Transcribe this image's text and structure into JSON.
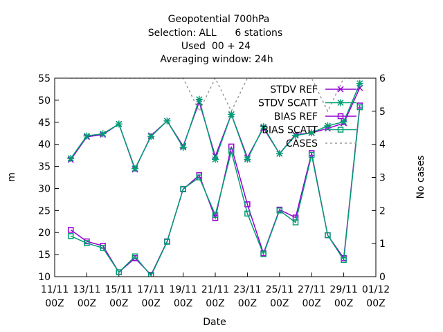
{
  "chart_data": {
    "type": "line",
    "title_lines": [
      "Geopotential 700hPa",
      "Selection: ALL      6 stations",
      "Used  00 + 24",
      "Averaging window: 24h"
    ],
    "xlabel": "Date",
    "ylabel": "m",
    "y2label": "No cases",
    "ylim": [
      10,
      55
    ],
    "y2lim": [
      0,
      6
    ],
    "yticks": [
      "10",
      "15",
      "20",
      "25",
      "30",
      "35",
      "40",
      "45",
      "50",
      "55"
    ],
    "y2ticks": [
      "0",
      "1",
      "2",
      "3",
      "4",
      "5",
      "6"
    ],
    "xlim": [
      0,
      20
    ],
    "xticks": [
      {
        "x": 0,
        "l1": "11/11",
        "l2": "00Z"
      },
      {
        "x": 2,
        "l1": "13/11",
        "l2": "00Z"
      },
      {
        "x": 4,
        "l1": "15/11",
        "l2": "00Z"
      },
      {
        "x": 6,
        "l1": "17/11",
        "l2": "00Z"
      },
      {
        "x": 8,
        "l1": "19/11",
        "l2": "00Z"
      },
      {
        "x": 10,
        "l1": "21/11",
        "l2": "00Z"
      },
      {
        "x": 12,
        "l1": "23/11",
        "l2": "00Z"
      },
      {
        "x": 14,
        "l1": "25/11",
        "l2": "00Z"
      },
      {
        "x": 16,
        "l1": "27/11",
        "l2": "00Z"
      },
      {
        "x": 18,
        "l1": "29/11",
        "l2": "00Z"
      },
      {
        "x": 20,
        "l1": "01/12",
        "l2": "00Z"
      }
    ],
    "x": [
      1,
      2,
      3,
      4,
      5,
      6,
      7,
      8,
      9,
      10,
      11,
      12,
      13,
      14,
      15,
      16,
      17,
      18,
      19
    ],
    "legend_position": "top-right",
    "series": [
      {
        "name": "STDV REF",
        "color": "#9400d3",
        "marker": "x-cross",
        "axis": "y",
        "values": [
          36.5,
          41.7,
          42.2,
          44.6,
          34.3,
          42.0,
          45.3,
          39.6,
          49.6,
          37.3,
          46.8,
          37.0,
          43.7,
          37.9,
          42.2,
          42.6,
          43.6,
          44.8,
          52.8
        ]
      },
      {
        "name": "STDV SCATT",
        "color": "#009e73",
        "marker": "x-star",
        "axis": "y",
        "values": [
          36.8,
          41.9,
          42.4,
          44.6,
          34.5,
          41.8,
          45.3,
          39.3,
          50.2,
          36.6,
          46.8,
          36.6,
          44.0,
          37.9,
          42.0,
          42.6,
          44.2,
          45.1,
          53.8
        ]
      },
      {
        "name": "BIAS REF",
        "color": "#9400d3",
        "marker": "square",
        "axis": "y",
        "values": [
          20.6,
          18.0,
          17.0,
          11.0,
          14.2,
          10.4,
          18.0,
          29.8,
          33.0,
          23.3,
          39.5,
          26.4,
          15.3,
          25.2,
          23.4,
          38.0,
          19.4,
          14.2,
          48.8
        ]
      },
      {
        "name": "BIAS SCATT",
        "color": "#009e73",
        "marker": "square",
        "axis": "y",
        "values": [
          19.2,
          17.6,
          16.5,
          11.0,
          14.6,
          10.2,
          17.9,
          29.9,
          32.5,
          24.0,
          38.4,
          24.3,
          15.1,
          25.0,
          22.3,
          37.6,
          19.4,
          13.8,
          48.4
        ]
      },
      {
        "name": "CASES",
        "color": "#999999",
        "marker": "none",
        "axis": "y2",
        "dashed": true,
        "values": [
          6,
          6,
          6,
          6,
          6,
          6,
          6,
          6,
          5,
          6,
          5,
          6,
          6,
          6,
          6,
          6,
          5,
          6,
          6
        ]
      }
    ]
  }
}
